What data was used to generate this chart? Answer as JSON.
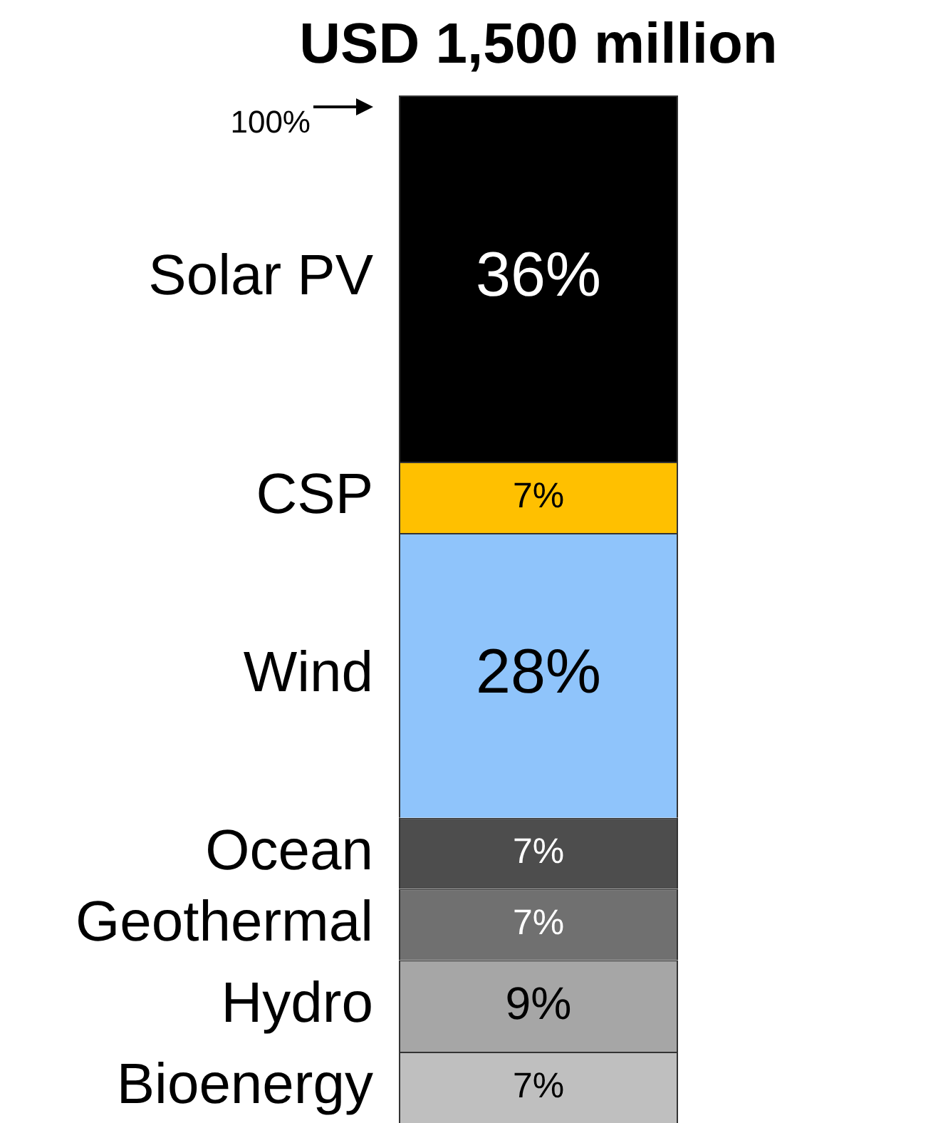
{
  "chart_data": {
    "type": "bar",
    "title": "USD 1,500 million",
    "categories": [
      null
    ],
    "stacked": true,
    "tick_labels": false,
    "ylim": [
      0,
      101
    ],
    "grid": false,
    "legend": false,
    "annotations": [
      "100%"
    ],
    "series": [
      {
        "name": "Bioenergy",
        "color": "#bfbfbf",
        "values": [
          7
        ],
        "value_labels": [
          "7%"
        ]
      },
      {
        "name": "Hydro",
        "color": "#a6a6a6",
        "values": [
          9
        ],
        "value_labels": [
          "9%"
        ]
      },
      {
        "name": "Geothermal",
        "color": "#707070",
        "values": [
          7
        ],
        "value_labels": [
          "7%"
        ]
      },
      {
        "name": "Ocean",
        "color": "#4d4d4d",
        "values": [
          7
        ],
        "value_labels": [
          "7%"
        ]
      },
      {
        "name": "Wind",
        "color": "#8fc4fb",
        "values": [
          28
        ],
        "value_labels": [
          "28%"
        ]
      },
      {
        "name": "CSP",
        "color": "#ffc000",
        "values": [
          7
        ],
        "value_labels": [
          "7%"
        ]
      },
      {
        "name": "Solar PV",
        "color": "#000000",
        "values": [
          36
        ],
        "value_labels": [
          "36%"
        ]
      }
    ]
  }
}
